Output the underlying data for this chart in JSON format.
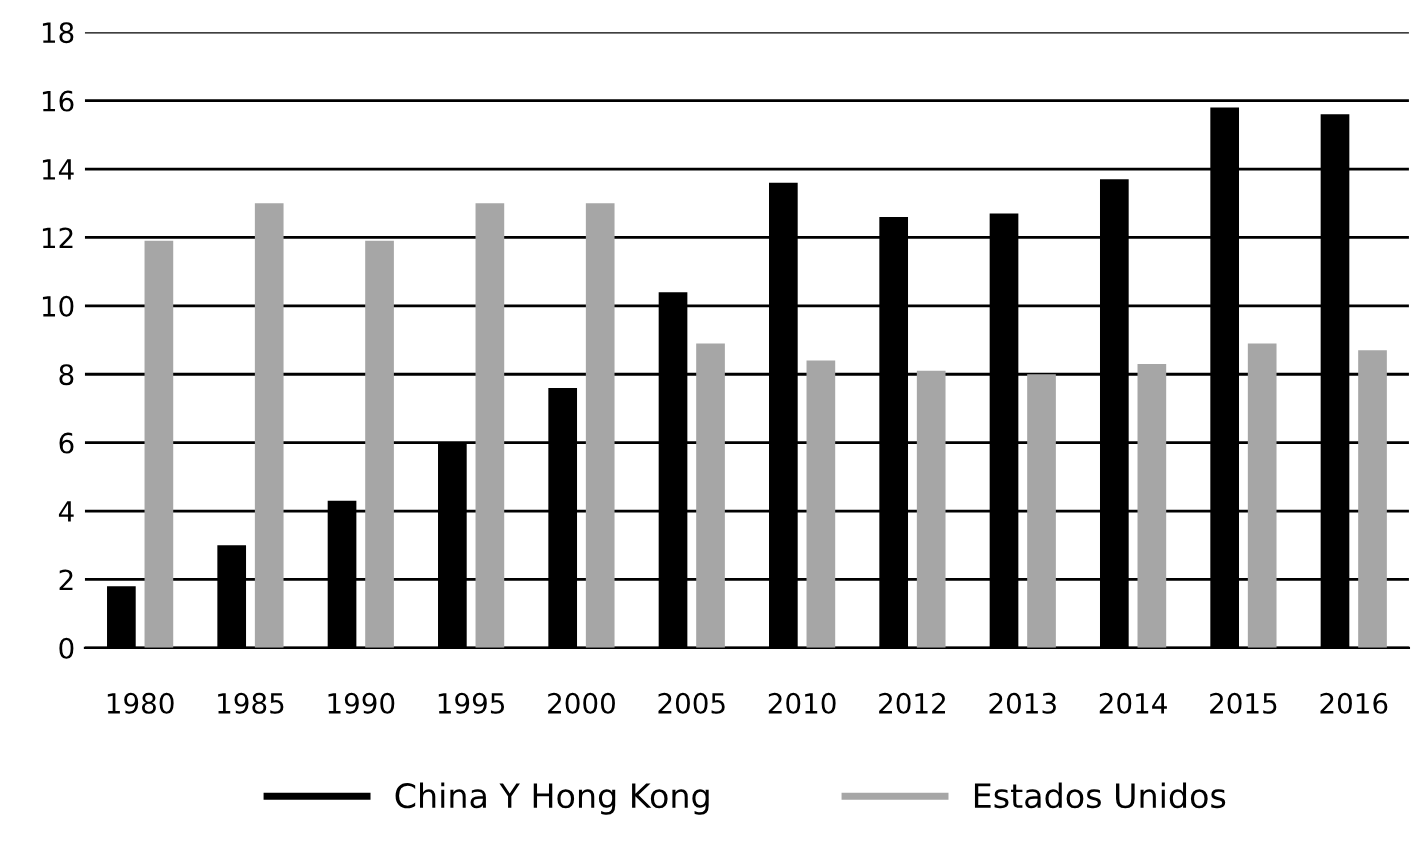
{
  "chart_data": {
    "type": "bar",
    "categories": [
      "1980",
      "1985",
      "1990",
      "1995",
      "2000",
      "2005",
      "2010",
      "2012",
      "2013",
      "2014",
      "2015",
      "2016"
    ],
    "series": [
      {
        "name": "China Y Hong Kong",
        "color": "#000000",
        "values": [
          1.8,
          3.0,
          4.3,
          6.0,
          7.6,
          10.4,
          13.6,
          12.6,
          12.7,
          13.7,
          15.8,
          15.6
        ]
      },
      {
        "name": "Estados Unidos",
        "color": "#a6a6a6",
        "values": [
          11.9,
          13.0,
          11.9,
          13.0,
          13.0,
          8.9,
          8.4,
          8.1,
          8.0,
          8.3,
          8.9,
          8.7
        ]
      }
    ],
    "ylim": [
      0,
      18
    ],
    "yticks": [
      0,
      2,
      4,
      6,
      8,
      10,
      12,
      14,
      16,
      18
    ],
    "grid": "y",
    "legend": "bottom"
  }
}
